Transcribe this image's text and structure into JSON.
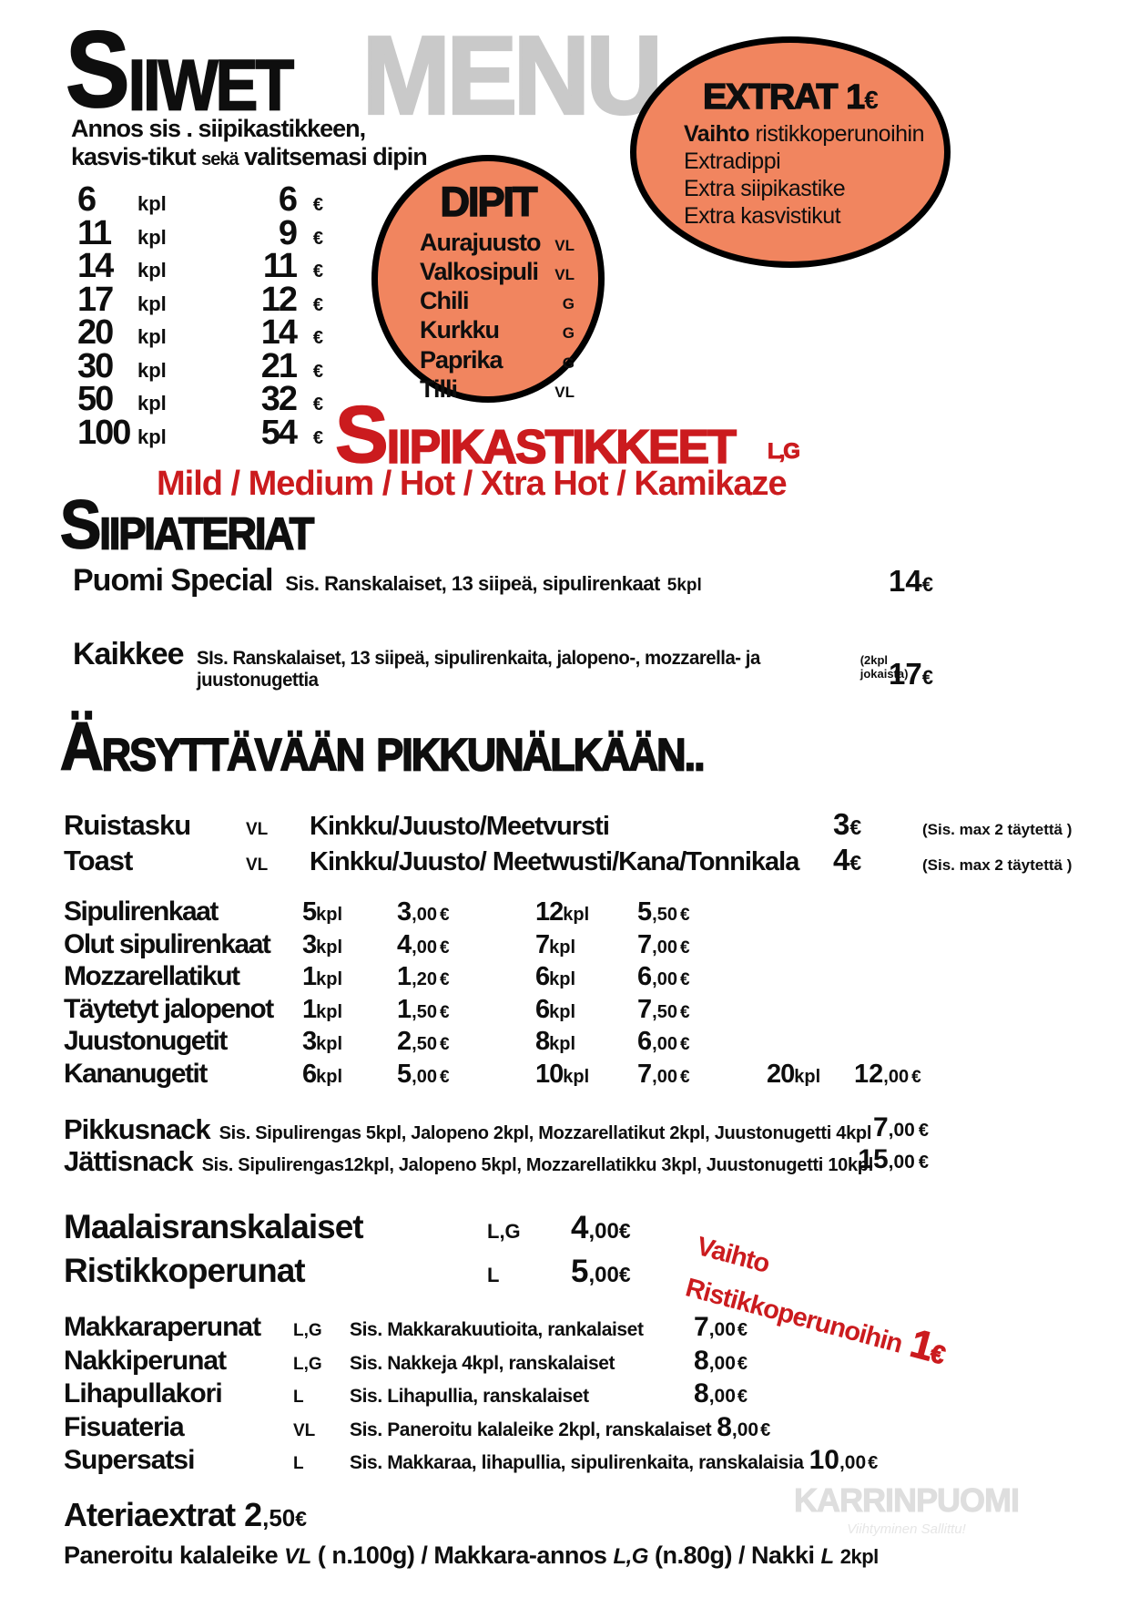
{
  "brand": {
    "menu_watermark": "MENU",
    "footer_name": "KARRINPUOMI",
    "footer_tagline": "Viihtyminen Sallittu!"
  },
  "colors": {
    "salmon": "#f1855f",
    "red": "#cb1b1e",
    "menu_gray": "#c9c9c9",
    "watermark_gray": "#dedede"
  },
  "header": {
    "title_initial": "S",
    "title_rest": "IIWET",
    "subtitle_line1": "Annos sis . siipikastikkeen,",
    "subtitle_line2_a": "kasvis-tikut",
    "subtitle_line2_mid": "sekä",
    "subtitle_line2_b": "valitsemasi dipin"
  },
  "extras_bubble": {
    "title": "EXTRAT",
    "price": "1",
    "currency": "€",
    "line1_bold": "Vaihto",
    "line1_rest": " ristikkoperunoihin",
    "line2": "Extradippi",
    "line3": "Extra siipikastike",
    "line4": "Extra kasvistikut"
  },
  "dips_bubble": {
    "title": "DIPIT",
    "items": [
      {
        "name": "Aurajuusto",
        "code": "VL"
      },
      {
        "name": "Valkosipuli",
        "code": "VL"
      },
      {
        "name": "Chili",
        "code": "G"
      },
      {
        "name": "Kurkku",
        "code": "G"
      },
      {
        "name": "Paprika",
        "code": "G"
      },
      {
        "name": "Tilli",
        "code": "VL"
      }
    ]
  },
  "wing_prices": {
    "unit": "kpl",
    "currency": "€",
    "rows": [
      {
        "qty": "6",
        "price": "6"
      },
      {
        "qty": "11",
        "price": "9"
      },
      {
        "qty": "14",
        "price": "11"
      },
      {
        "qty": "17",
        "price": "12"
      },
      {
        "qty": "20",
        "price": "14"
      },
      {
        "qty": "30",
        "price": "21"
      },
      {
        "qty": "50",
        "price": "32"
      },
      {
        "qty": "100",
        "price": "54"
      }
    ]
  },
  "sauces": {
    "title_initial": "S",
    "title_rest": "IIPIKASTIKKEET",
    "diet": "L,G",
    "options": "Mild / Medium / Hot / Xtra Hot / Kamikaze"
  },
  "wing_meals": {
    "title_initial": "S",
    "title_rest": "IIPIATERIAT",
    "items": [
      {
        "name": "Puomi Special",
        "desc": "Sis. Ranskalaiset, 13 siipeä, sipulirenkaat",
        "qty_note": "5kpl",
        "note": "",
        "price": "14",
        "currency": "€"
      },
      {
        "name": "Kaikkee",
        "desc": "SIs. Ranskalaiset, 13 siipeä, sipulirenkaita, jalopeno-, mozzarella- ja juustonugettia",
        "qty_note": "",
        "note": "(2kpl jokaista)",
        "price": "17",
        "currency": "€"
      }
    ]
  },
  "small_hunger": {
    "title_initial": "Ä",
    "title_rest": "RSYTTÄVÄÄN",
    "title_word2": "PIKKUNÄLKÄÄN..",
    "sandwiches": [
      {
        "name": "Ruistasku",
        "diet": "VL",
        "fillings": "Kinkku/Juusto/Meetvursti",
        "price": "3",
        "currency": "€",
        "note": "(Sis. max 2 täytettä )"
      },
      {
        "name": "Toast",
        "diet": "VL",
        "fillings": "Kinkku/Juusto/ Meetwusti/Kana/Tonnikala",
        "price": "4",
        "currency": "€",
        "note": "(Sis. max 2 täytettä )"
      }
    ]
  },
  "snack_table": {
    "unit": "kpl",
    "currency": "€",
    "rows": [
      {
        "name": "Sipulirenkaat",
        "q1": "5",
        "p1": "3",
        "d1": ",00",
        "q2": "12",
        "p2": "5",
        "d2": ",50"
      },
      {
        "name": "Olut sipulirenkaat",
        "q1": "3",
        "p1": "4",
        "d1": ",00",
        "q2": "7",
        "p2": "7",
        "d2": ",00"
      },
      {
        "name": "Mozzarellatikut",
        "q1": "1",
        "p1": "1",
        "d1": ",20",
        "q2": "6",
        "p2": "6",
        "d2": ",00"
      },
      {
        "name": "Täytetyt jalopenot",
        "q1": "1",
        "p1": "1",
        "d1": ",50",
        "q2": "6",
        "p2": "7",
        "d2": ",50"
      },
      {
        "name": "Juustonugetit",
        "q1": "3",
        "p1": "2",
        "d1": ",50",
        "q2": "8",
        "p2": "6",
        "d2": ",00"
      },
      {
        "name": "Kananugetit",
        "q1": "6",
        "p1": "5",
        "d1": ",00",
        "q2": "10",
        "p2": "7",
        "d2": ",00",
        "q3": "20",
        "p3": "12",
        "d3": ",00"
      }
    ]
  },
  "combo_snacks": [
    {
      "name": "Pikkusnack",
      "desc": "Sis. Sipulirengas 5kpl, Jalopeno 2kpl, Mozzarellatikut 2kpl, Juustonugetti 4kpl",
      "price": "7",
      "dec": ",00",
      "currency": "€"
    },
    {
      "name": "Jättisnack",
      "desc": "Sis. Sipulirengas12kpl, Jalopeno 5kpl, Mozzarellatikku 3kpl, Juustonugetti 10kpl",
      "price": "15",
      "dec": ",00",
      "currency": "€"
    }
  ],
  "fries": [
    {
      "name": "Maalaisranskalaiset",
      "diet": "L,G",
      "price": "4",
      "dec": ",00",
      "currency": "€"
    },
    {
      "name": "Ristikkoperunat",
      "diet": "L",
      "price": "5",
      "dec": ",00",
      "currency": "€"
    }
  ],
  "swap_badge": {
    "line1": "Vaihto",
    "line2": "Ristikkoperunoihin",
    "price": "1",
    "currency": "€"
  },
  "meals": [
    {
      "name": "Makkaraperunat",
      "diet": "L,G",
      "desc": "Sis. Makkarakuutioita, rankalaiset",
      "price": "7",
      "dec": ",00",
      "currency": "€"
    },
    {
      "name": "Nakkiperunat",
      "diet": "L,G",
      "desc": "Sis. Nakkeja 4kpl, ranskalaiset",
      "price": "8",
      "dec": ",00",
      "currency": "€"
    },
    {
      "name": "Lihapullakori",
      "diet": "L",
      "desc": "Sis. Lihapullia, ranskalaiset",
      "price": "8",
      "dec": ",00",
      "currency": "€"
    },
    {
      "name": "Fisuateria",
      "diet": "VL",
      "desc": "Sis. Paneroitu kalaleike 2kpl, ranskalaiset",
      "price": "8",
      "dec": ",00",
      "currency": "€"
    },
    {
      "name": "Supersatsi",
      "diet": "L",
      "desc": "Sis. Makkaraa, lihapullia, sipulirenkaita, ranskalaisia",
      "price": "10",
      "dec": ",00",
      "currency": "€"
    }
  ],
  "meal_extras": {
    "title": "Ateriaextrat",
    "price": "2",
    "dec": ",50",
    "currency": "€",
    "item1": "Paneroitu kalaleike",
    "diet1": "VL",
    "mid1": "( n.100g) / Makkara-annos",
    "diet2": "L,G",
    "mid2": "(n.80g) / Nakki",
    "diet3": "L",
    "qty": "2kpl"
  }
}
